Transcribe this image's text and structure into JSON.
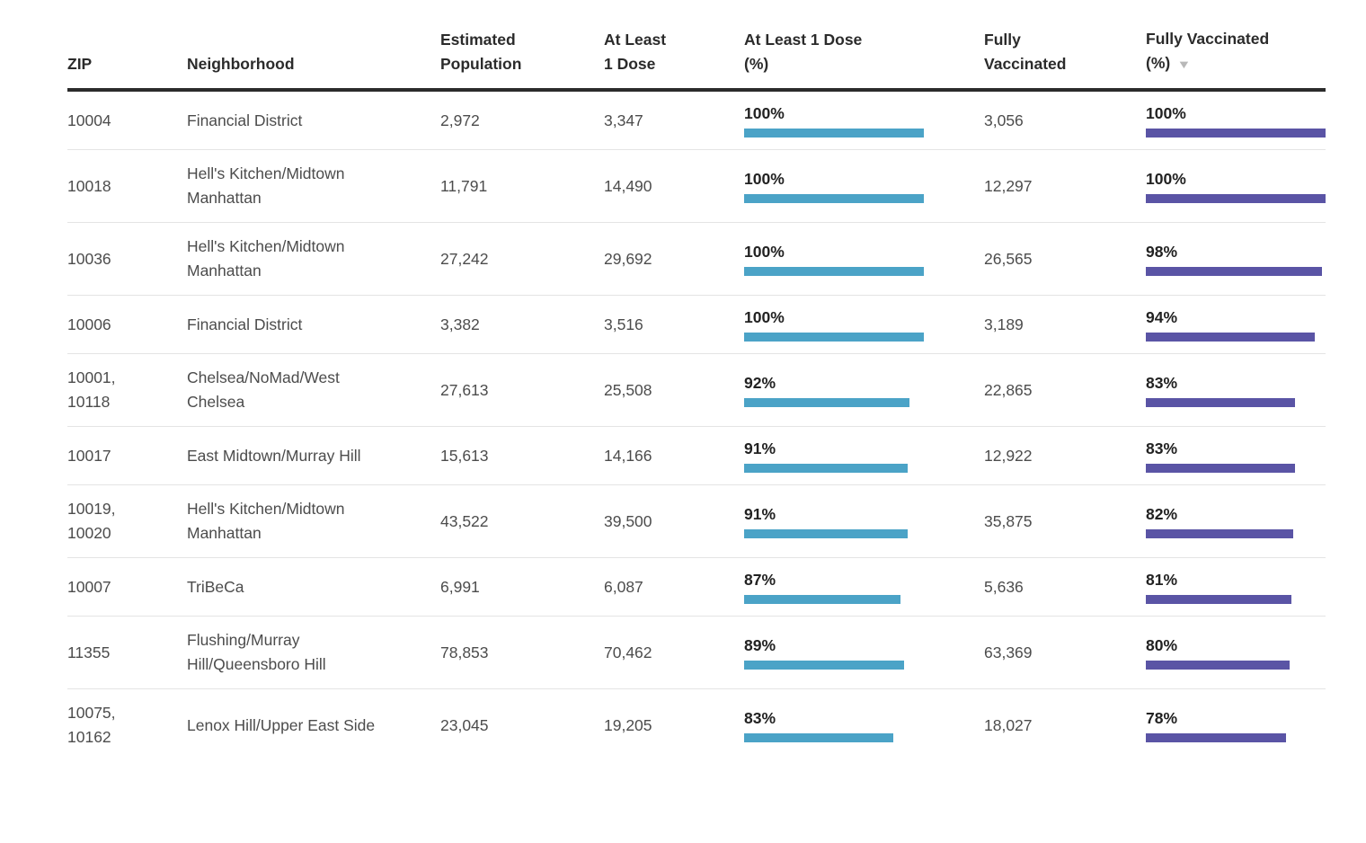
{
  "chart_data": {
    "type": "table",
    "description": "Vaccination table by ZIP code with inline percentage bar charts",
    "columns": [
      {
        "id": "zip",
        "label": "ZIP"
      },
      {
        "id": "neighborhood",
        "label": "Neighborhood"
      },
      {
        "id": "estimated_population",
        "label": "Estimated Population"
      },
      {
        "id": "at_least_1_dose",
        "label": "At Least 1 Dose"
      },
      {
        "id": "at_least_1_dose_pct",
        "label": "At Least 1 Dose (%)"
      },
      {
        "id": "fully_vaccinated",
        "label": "Fully Vaccinated"
      },
      {
        "id": "fully_vaccinated_pct",
        "label": "Fully Vaccinated (%)"
      }
    ],
    "sort": {
      "column_id": "fully_vaccinated_pct",
      "direction": "desc"
    },
    "bar_scale": {
      "min": 0,
      "max": 100
    },
    "colors": {
      "at_least_1_dose_bar": "#4ba3c7",
      "fully_vaccinated_bar": "#5a54a5",
      "header_text": "#2b2b2b",
      "body_text": "#4c4c4c",
      "header_rule": "#2b2b2b",
      "row_divider": "#e4e4e4",
      "sort_icon": "#b8b8b8"
    },
    "icons": {
      "sort_desc": "▼"
    },
    "rows": [
      {
        "zip": "10004",
        "neighborhood": "Financial District",
        "estimated_population": "2,972",
        "at_least_1_dose": "3,347",
        "at_least_1_dose_pct": "100%",
        "fully_vaccinated": "3,056",
        "fully_vaccinated_pct": "100%"
      },
      {
        "zip": "10018",
        "neighborhood": "Hell's Kitchen/Midtown Manhattan",
        "estimated_population": "11,791",
        "at_least_1_dose": "14,490",
        "at_least_1_dose_pct": "100%",
        "fully_vaccinated": "12,297",
        "fully_vaccinated_pct": "100%"
      },
      {
        "zip": "10036",
        "neighborhood": "Hell's Kitchen/Midtown Manhattan",
        "estimated_population": "27,242",
        "at_least_1_dose": "29,692",
        "at_least_1_dose_pct": "100%",
        "fully_vaccinated": "26,565",
        "fully_vaccinated_pct": "98%"
      },
      {
        "zip": "10006",
        "neighborhood": "Financial District",
        "estimated_population": "3,382",
        "at_least_1_dose": "3,516",
        "at_least_1_dose_pct": "100%",
        "fully_vaccinated": "3,189",
        "fully_vaccinated_pct": "94%"
      },
      {
        "zip": "10001, 10118",
        "neighborhood": "Chelsea/NoMad/West Chelsea",
        "estimated_population": "27,613",
        "at_least_1_dose": "25,508",
        "at_least_1_dose_pct": "92%",
        "fully_vaccinated": "22,865",
        "fully_vaccinated_pct": "83%"
      },
      {
        "zip": "10017",
        "neighborhood": "East Midtown/Murray Hill",
        "estimated_population": "15,613",
        "at_least_1_dose": "14,166",
        "at_least_1_dose_pct": "91%",
        "fully_vaccinated": "12,922",
        "fully_vaccinated_pct": "83%"
      },
      {
        "zip": "10019, 10020",
        "neighborhood": "Hell's Kitchen/Midtown Manhattan",
        "estimated_population": "43,522",
        "at_least_1_dose": "39,500",
        "at_least_1_dose_pct": "91%",
        "fully_vaccinated": "35,875",
        "fully_vaccinated_pct": "82%"
      },
      {
        "zip": "10007",
        "neighborhood": "TriBeCa",
        "estimated_population": "6,991",
        "at_least_1_dose": "6,087",
        "at_least_1_dose_pct": "87%",
        "fully_vaccinated": "5,636",
        "fully_vaccinated_pct": "81%"
      },
      {
        "zip": "11355",
        "neighborhood": "Flushing/Murray Hill/Queensboro Hill",
        "estimated_population": "78,853",
        "at_least_1_dose": "70,462",
        "at_least_1_dose_pct": "89%",
        "fully_vaccinated": "63,369",
        "fully_vaccinated_pct": "80%"
      },
      {
        "zip": "10075, 10162",
        "neighborhood": "Lenox Hill/Upper East Side",
        "estimated_population": "23,045",
        "at_least_1_dose": "19,205",
        "at_least_1_dose_pct": "83%",
        "fully_vaccinated": "18,027",
        "fully_vaccinated_pct": "78%"
      }
    ]
  }
}
